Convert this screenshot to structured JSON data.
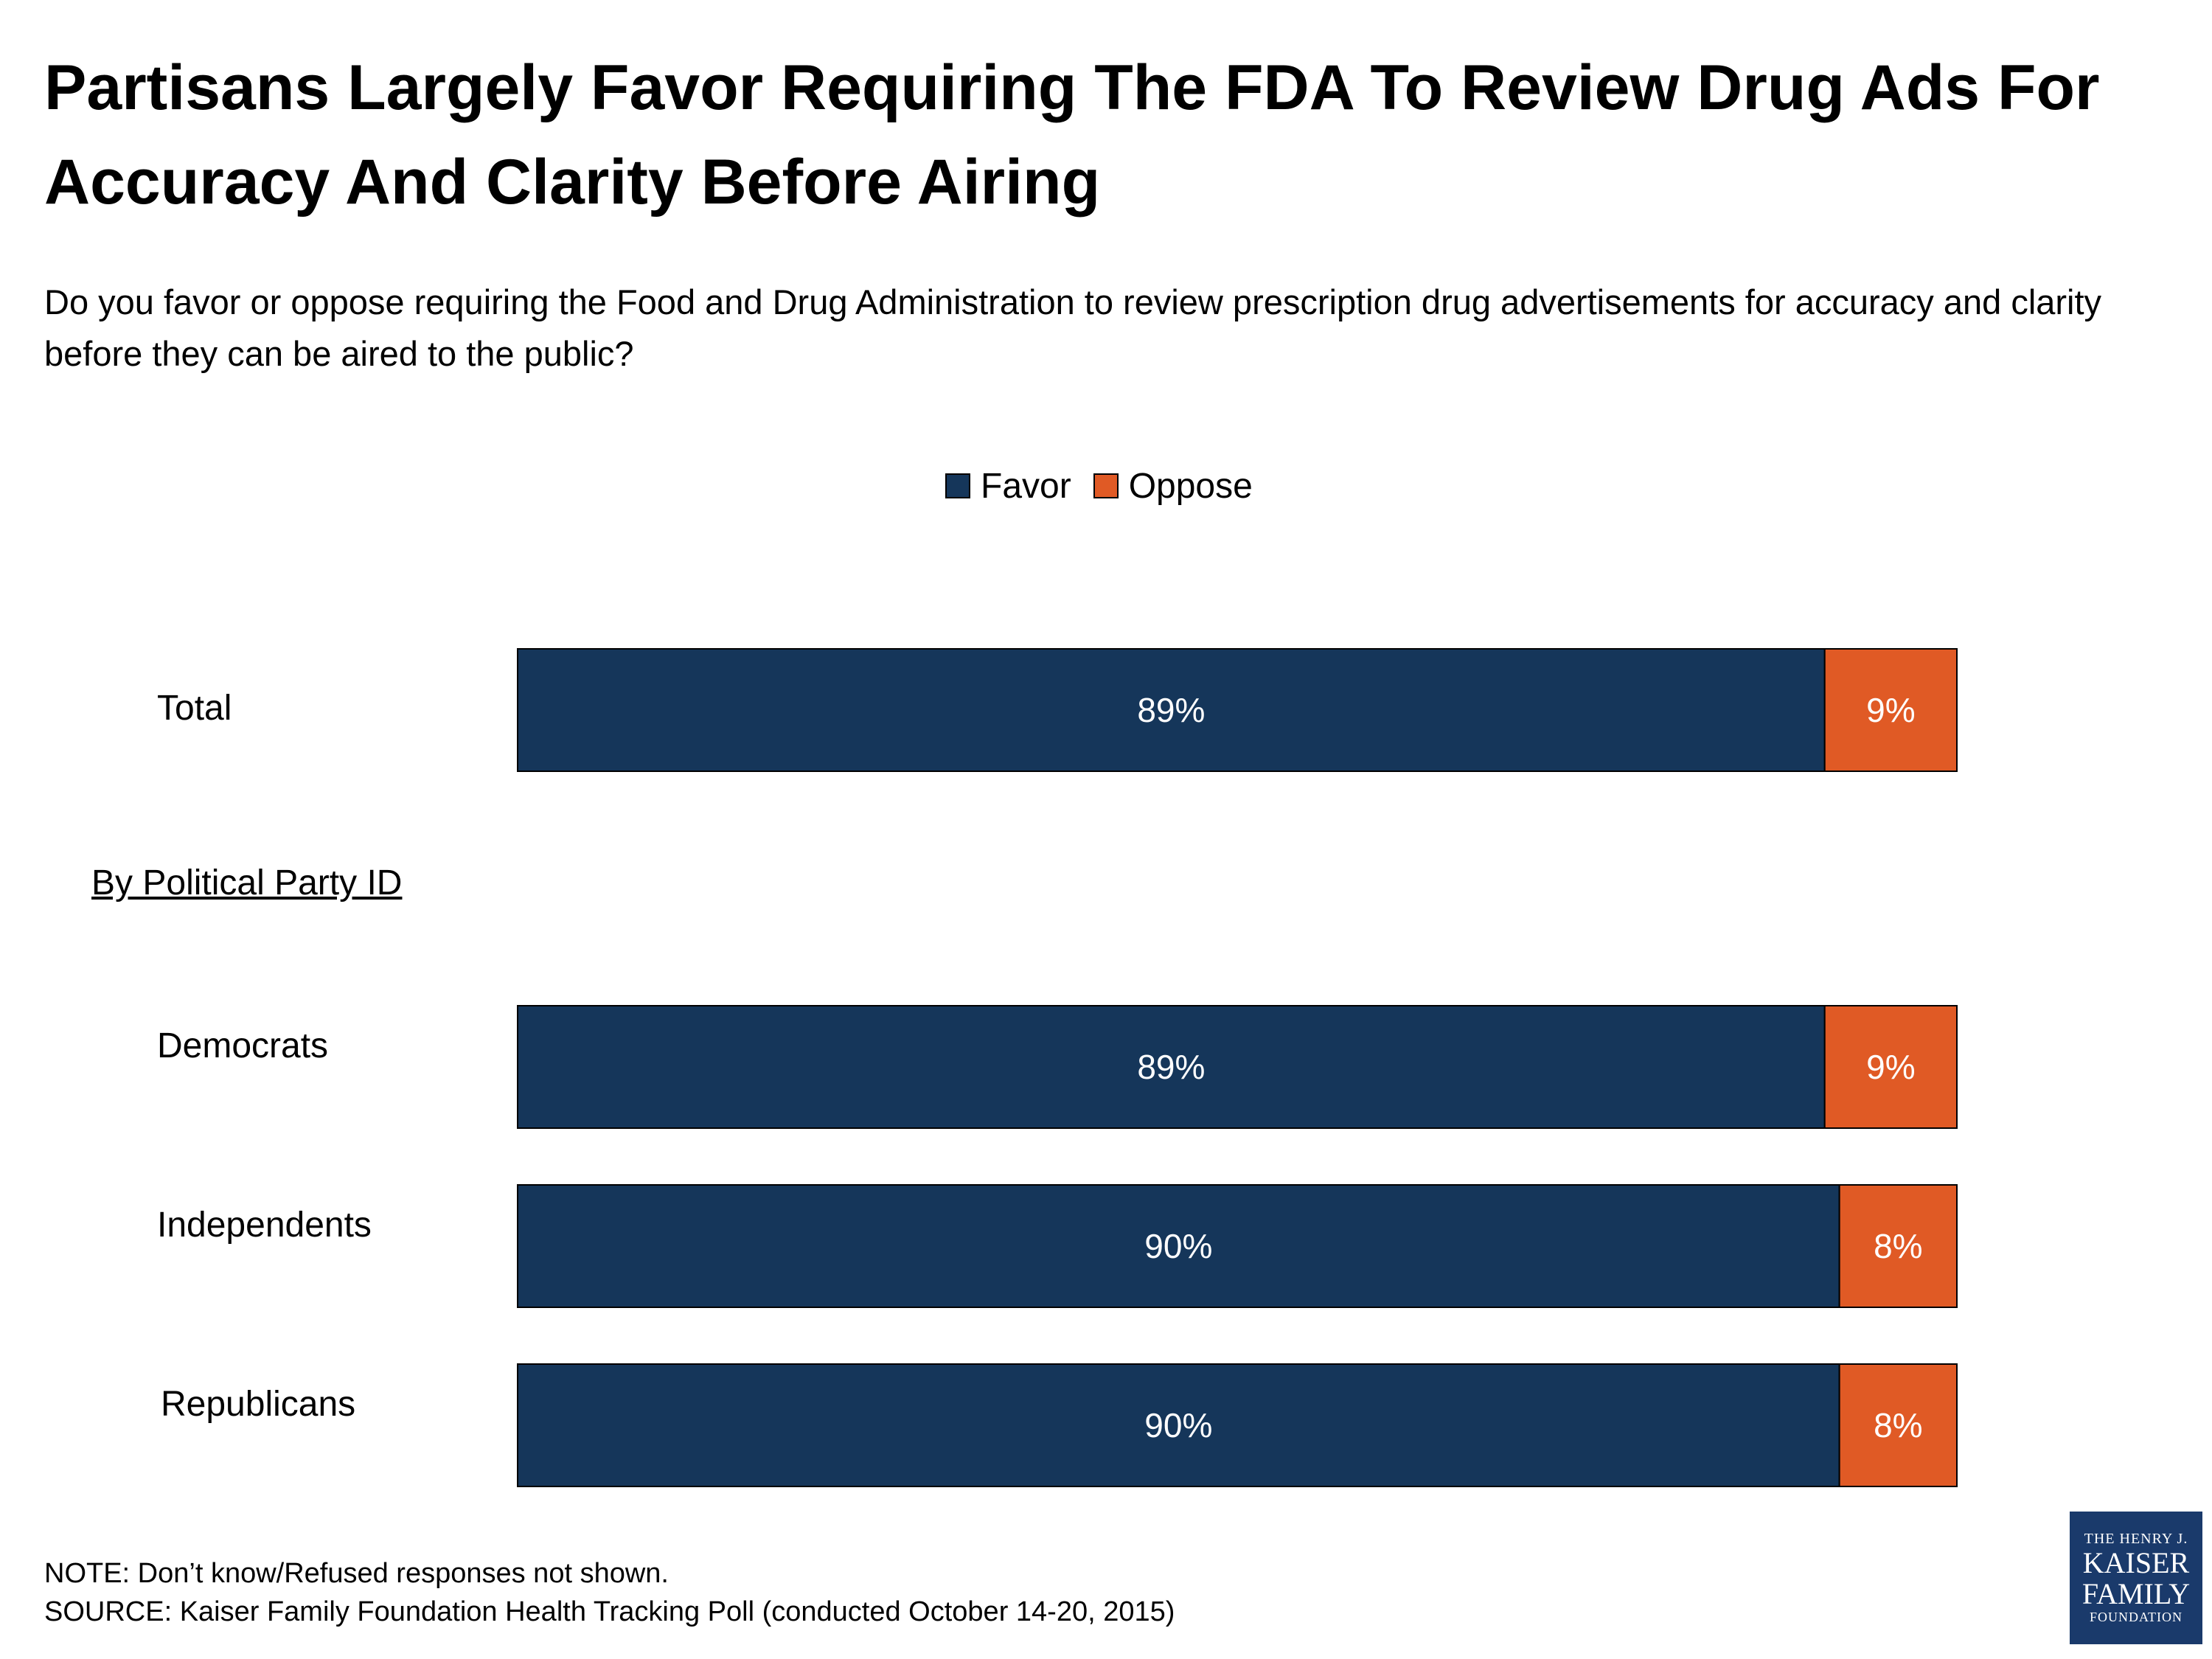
{
  "title": "Partisans Largely Favor Requiring The FDA To Review Drug Ads For Accuracy And Clarity Before Airing",
  "subtitle": "Do you favor or oppose requiring the Food and Drug Administration to review prescription drug advertisements for accuracy and clarity before they can be aired to the public?",
  "section_label": "By Political Party ID",
  "notes": {
    "note": "NOTE: Don’t know/Refused responses not shown.",
    "source": "SOURCE: Kaiser Family Foundation Health Tracking Poll (conducted October 14-20, 2015)"
  },
  "logo": {
    "line1": "THE HENRY J.",
    "line2": "KAISER",
    "line3": "FAMILY",
    "line4": "FOUNDATION"
  },
  "colors": {
    "favor": "#15365a",
    "oppose": "#e05a25",
    "logo_bg": "#1a3a6b"
  },
  "chart_data": {
    "type": "bar",
    "orientation": "horizontal",
    "stacked": true,
    "categories": [
      "Total",
      "Democrats",
      "Independents",
      "Republicans"
    ],
    "series": [
      {
        "name": "Favor",
        "values": [
          89,
          89,
          90,
          90
        ],
        "labels": [
          "89%",
          "89%",
          "90%",
          "90%"
        ]
      },
      {
        "name": "Oppose",
        "values": [
          9,
          9,
          8,
          8
        ],
        "labels": [
          "9%",
          "9%",
          "8%",
          "8%"
        ]
      }
    ],
    "legend": [
      "Favor",
      "Oppose"
    ],
    "legend_position": "top",
    "xlim": [
      0,
      98
    ],
    "grid": false
  }
}
